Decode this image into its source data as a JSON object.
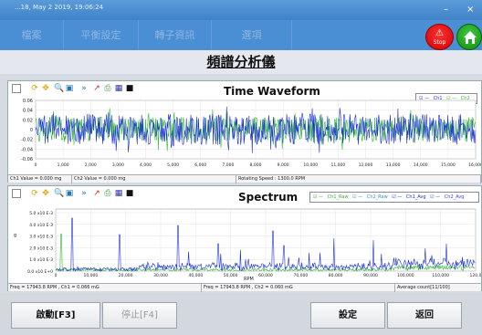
{
  "window": {
    "title": "...18, May 2 2019, 19:06:24",
    "minimize": "–",
    "close": "×"
  },
  "menu": {
    "tabs": [
      {
        "label": "檔案",
        "left": 18
      },
      {
        "label": "平衡設定",
        "left": 84
      },
      {
        "label": "轉子資訊",
        "left": 164
      },
      {
        "label": "選項",
        "left": 242
      }
    ]
  },
  "stop_button": {
    "label": "Stop"
  },
  "page_title": "頻譜分析儀",
  "waveform": {
    "title": "Time Waveform",
    "legend": [
      "Ch1",
      "Ch2"
    ],
    "yticks": [
      "0.06",
      "0.04",
      "0.02",
      "0",
      "-0.02",
      "-0.04",
      "-0.06"
    ],
    "xticks": [
      "0",
      "1,000",
      "2,000",
      "3,000",
      "4,000",
      "5,000",
      "6,000",
      "7,000",
      "8,000",
      "9,000",
      "10,000",
      "11,000",
      "12,000",
      "13,000",
      "14,000",
      "15,000",
      "16,000"
    ],
    "status": {
      "ch1": "Ch1 Value = 0.000 mg",
      "ch2": "Ch2 Value = 0.000 mg",
      "speed": "Rotating Speed : 1300.0 RPM"
    }
  },
  "spectrum": {
    "title": "Spectrum",
    "legend": [
      "Ch1_Raw",
      "Ch2_Raw",
      "Ch1_Avg",
      "Ch2_Avg"
    ],
    "yunit": "g",
    "yticks": [
      "5.0 x10 E-3",
      "4.0 x10 E-3",
      "3.0 x10 E-3",
      "2.0 x10 E-3",
      "1.0 x10 E-3",
      "0.0 x10 E+0"
    ],
    "xticks": [
      "0",
      "10,000",
      "20,000",
      "30,000",
      "40,000",
      "50,000",
      "60,000",
      "70,000",
      "80,000",
      "90,000",
      "100,000",
      "110,000",
      "120,0"
    ],
    "xlabel": "RPM",
    "status": {
      "ch1": "Freq = 17943.8 RPM , Ch1 = 0.066 mG",
      "ch2": "Freq = 17943.8 RPM , Ch2 = 0.060 mG",
      "avg": "Average count[11/100]"
    }
  },
  "footer": {
    "start": "啟動[F3]",
    "stop": "停止[F4]",
    "settings": "設定",
    "back": "返回"
  },
  "colors": {
    "ch1": "#1a2fd8",
    "ch2": "#2fb82f",
    "ch1_avg": "#6a5acd",
    "ch2_avg": "#4040ff",
    "menu": "#4a8fd4",
    "titlebar": "#3f83c9"
  }
}
